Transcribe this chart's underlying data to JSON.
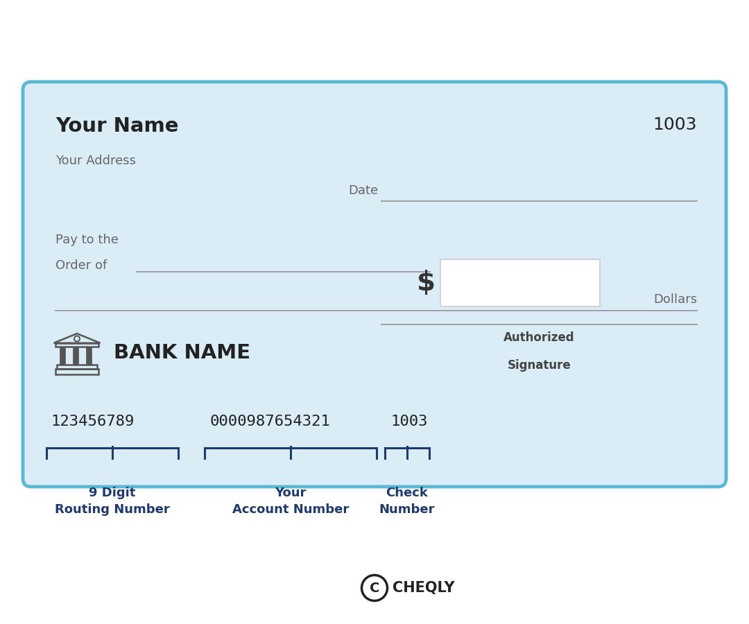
{
  "bg_color": "#ffffff",
  "check_bg": "#daedf7",
  "check_border": "#5bb8d4",
  "name_text": "Your Name",
  "address_text": "Your Address",
  "check_number_top": "1003",
  "date_label": "Date",
  "pay_line1": "Pay to the",
  "pay_line2": "Order of",
  "dollar_sign": "$",
  "dollars_text": "Dollars",
  "bank_name": "BANK NAME",
  "auth_sig_line1": "Authorized",
  "auth_sig_line2": "Signature",
  "routing_number": "123456789",
  "account_number": "0000987654321",
  "check_number_bottom": "1003",
  "label_routing": "9 Digit\nRouting Number",
  "label_account": "Your\nAccount Number",
  "label_check": "Check\nNumber",
  "dark_blue": "#1e3a6e",
  "text_gray": "#666666",
  "line_color": "#999999",
  "num_dark": "#222222",
  "bank_icon_color": "#555555",
  "cheqly_text": "CHEQLY"
}
